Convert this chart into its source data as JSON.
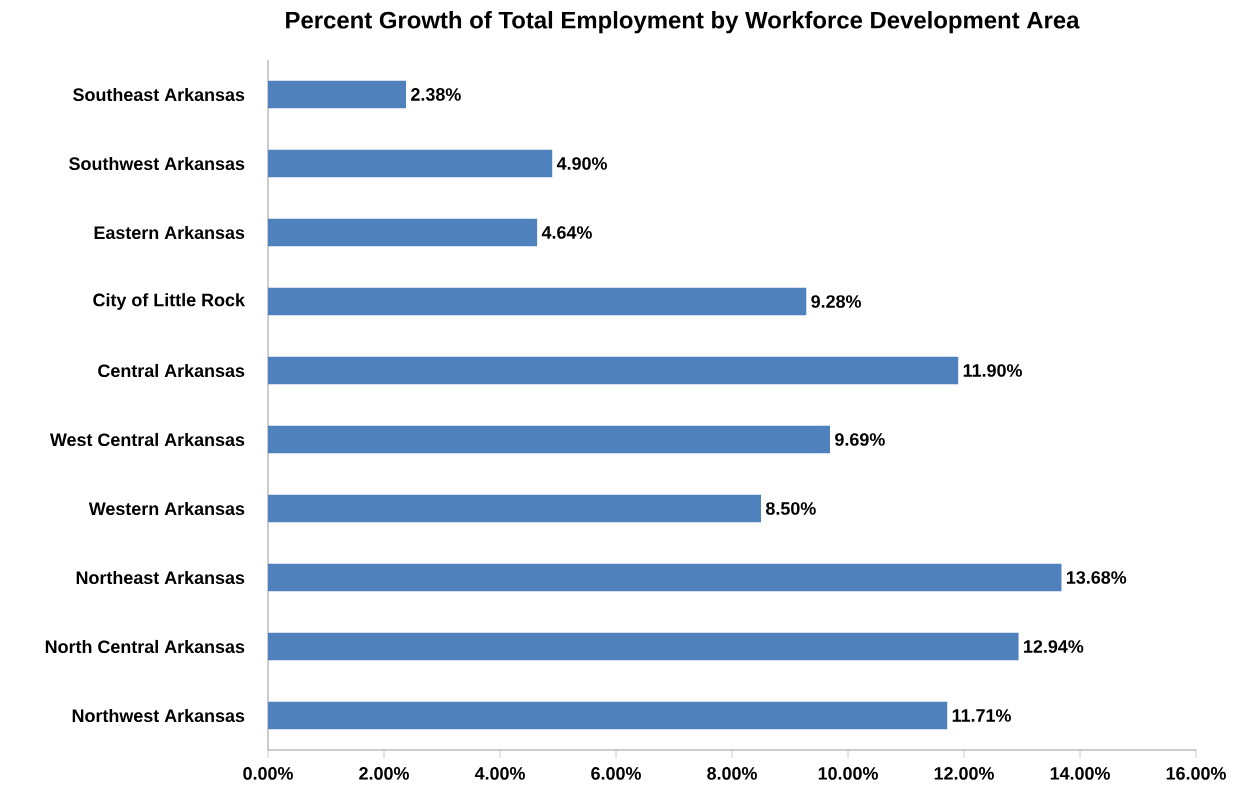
{
  "chart_data": {
    "type": "bar",
    "orientation": "horizontal",
    "title": "Percent Growth of Total Employment by Workforce Development Area",
    "categories": [
      "Southeast Arkansas",
      "Southwest Arkansas",
      "Eastern Arkansas",
      "City of Little Rock",
      "Central Arkansas",
      "West Central Arkansas",
      "Western Arkansas",
      "Northeast Arkansas",
      "North Central Arkansas",
      "Northwest Arkansas"
    ],
    "values": [
      2.38,
      4.9,
      4.64,
      9.28,
      11.9,
      9.69,
      8.5,
      13.68,
      12.94,
      11.71
    ],
    "value_labels": [
      "2.38%",
      "4.90%",
      "4.64%",
      "9.28%",
      "11.90%",
      "9.69%",
      "8.50%",
      "13.68%",
      "12.94%",
      "11.71%"
    ],
    "color": "#4f81bd",
    "xlim": [
      0,
      16
    ],
    "xticks": [
      {
        "value": 0,
        "label": "0.00%"
      },
      {
        "value": 2,
        "label": "2.00%"
      },
      {
        "value": 4,
        "label": "4.00%"
      },
      {
        "value": 6,
        "label": "6.00%"
      },
      {
        "value": 8,
        "label": "8.00%"
      },
      {
        "value": 10,
        "label": "10.00%"
      },
      {
        "value": 12,
        "label": "12.00%"
      },
      {
        "value": 14,
        "label": "14.00%"
      },
      {
        "value": 16,
        "label": "16.00%"
      }
    ]
  }
}
